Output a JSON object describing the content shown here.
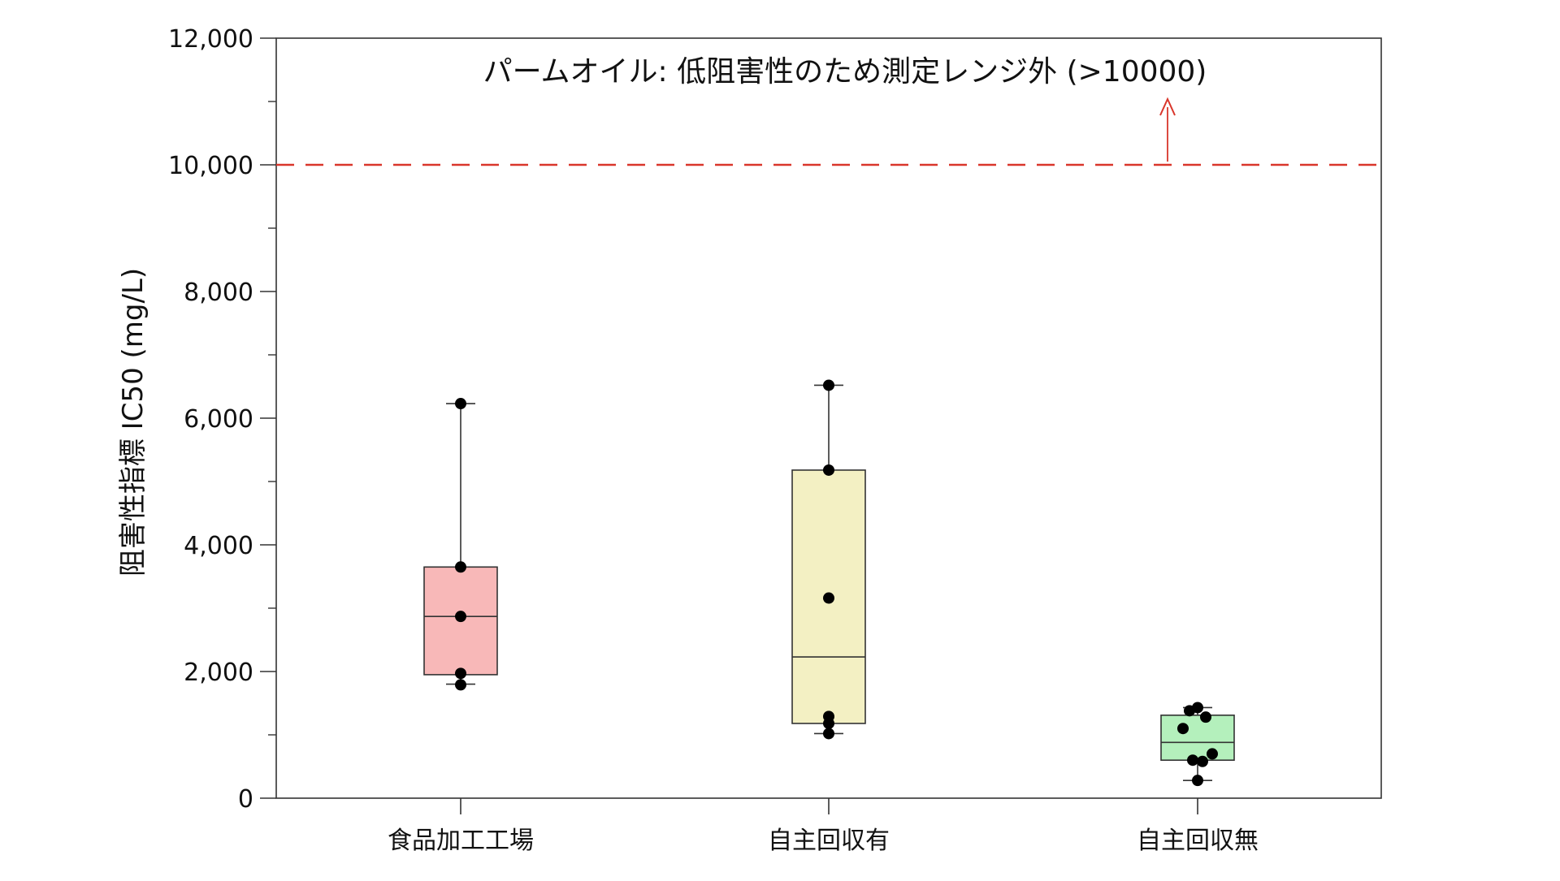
{
  "chart_data": {
    "type": "box",
    "ylabel": "阻害性指標 IC50 (mg/L)",
    "ylim": [
      0,
      12000
    ],
    "yticks": [
      0,
      2000,
      4000,
      6000,
      8000,
      10000,
      12000
    ],
    "ytick_labels": [
      "0",
      "2,000",
      "4,000",
      "6,000",
      "8,000",
      "10,000",
      "12,000"
    ],
    "grid": false,
    "categories": [
      "食品加工工場",
      "自主回収有",
      "自主回収無"
    ],
    "boxes": [
      {
        "category": "食品加工工場",
        "color": "#f8b8b8",
        "whisker_low": 1800,
        "q1": 1950,
        "median": 2870,
        "q3": 3650,
        "whisker_high": 6230,
        "points": [
          6230,
          3650,
          2870,
          1970,
          1790
        ]
      },
      {
        "category": "自主回収有",
        "color": "#f3f0c3",
        "whisker_low": 1020,
        "q1": 1180,
        "median": 2230,
        "q3": 5180,
        "whisker_high": 6520,
        "points": [
          6520,
          5180,
          3160,
          1290,
          1180,
          1020
        ]
      },
      {
        "category": "自主回収無",
        "color": "#b4f0bc",
        "whisker_low": 280,
        "q1": 600,
        "median": 880,
        "q3": 1310,
        "whisker_high": 1430,
        "points": [
          1430,
          1380,
          1280,
          1100,
          700,
          600,
          580,
          280
        ]
      }
    ],
    "reference_line": {
      "y": 10000,
      "style": "dashed",
      "color": "#d9362b"
    },
    "annotation": {
      "text": "パームオイル: 低阻害性のため測定レンジ外 (>10000)",
      "arrow_color": "#d9362b"
    }
  }
}
